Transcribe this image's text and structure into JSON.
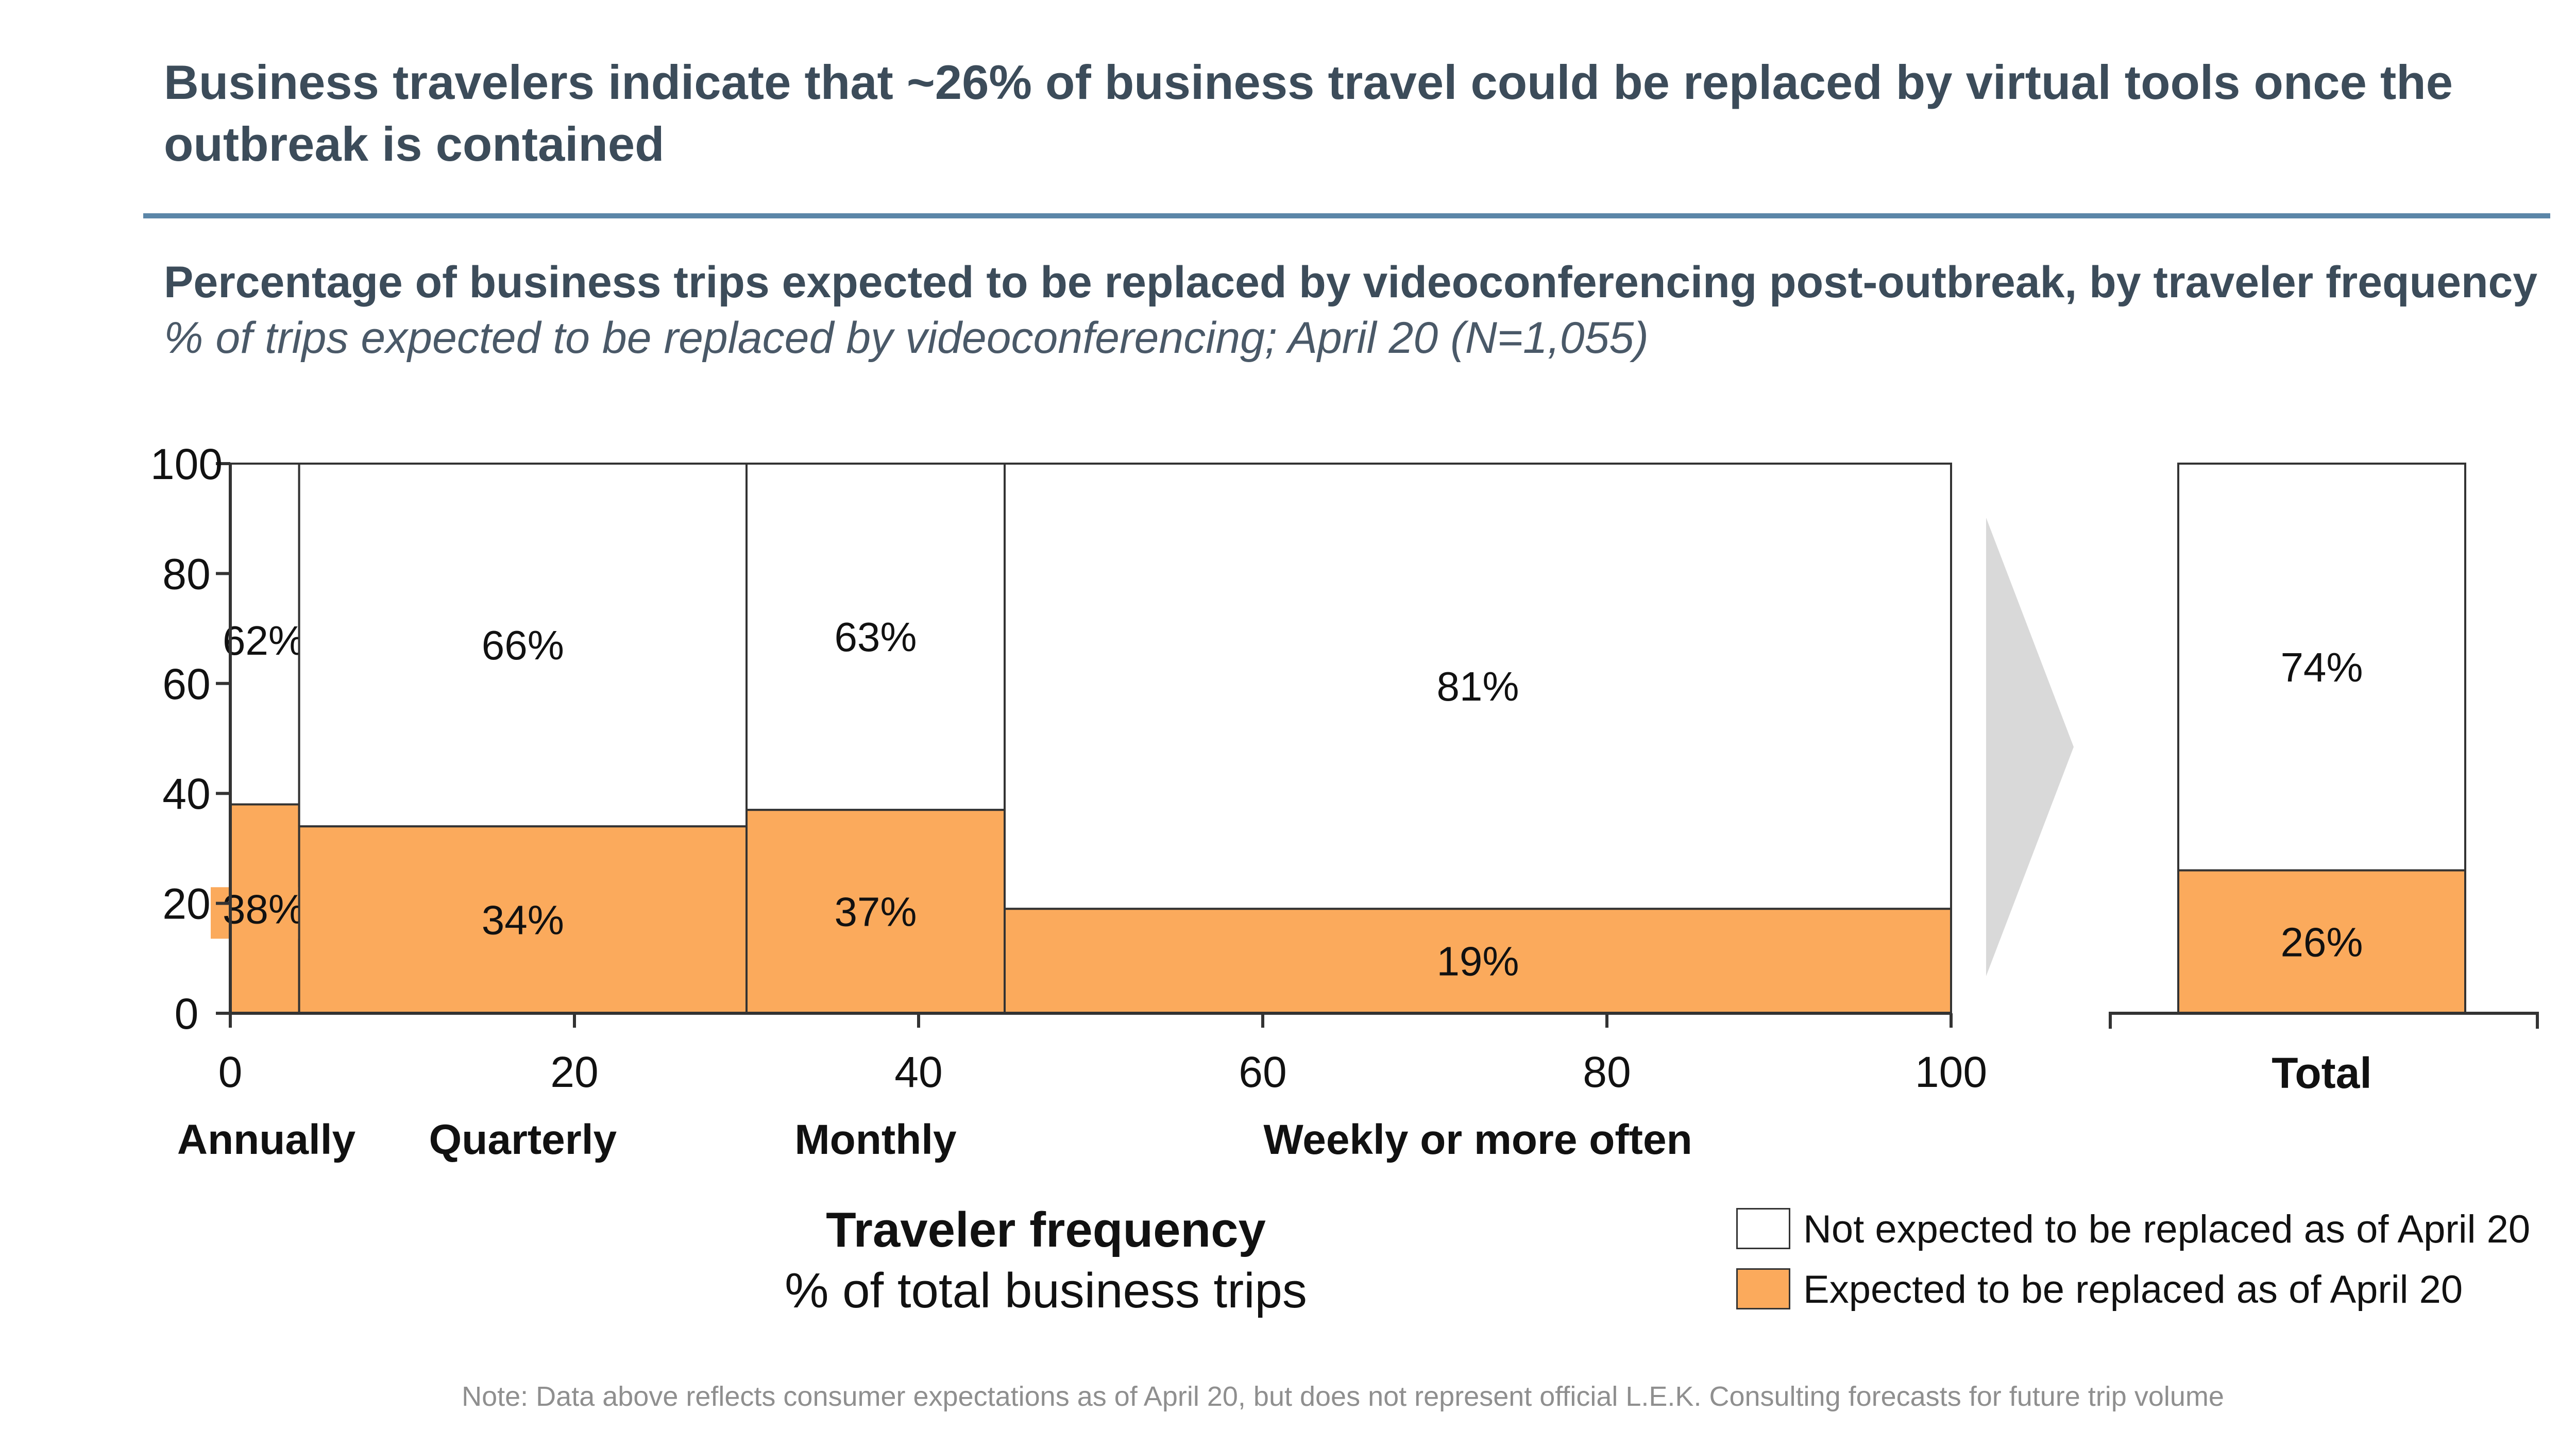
{
  "headline": "Business travelers indicate that ~26% of business travel could be replaced by virtual tools once the outbreak is contained",
  "chart_data": {
    "type": "bar",
    "subtype": "marimekko-stacked-100",
    "title": "Percentage of business trips expected to be replaced by videoconferencing post-outbreak, by traveler frequency",
    "subtitle": "% of trips expected to be replaced by videoconferencing; April 20 (N=1,055)",
    "xlabel": "Traveler frequency",
    "xlabel_sub": "% of total business trips",
    "xlim": [
      0,
      100
    ],
    "ylim": [
      0,
      100
    ],
    "x_ticks": [
      0,
      20,
      40,
      60,
      80,
      100
    ],
    "y_ticks": [
      0,
      20,
      40,
      60,
      80,
      100
    ],
    "grid": false,
    "legend_position": "bottom-right",
    "colors": {
      "expected": "#fbaa5c",
      "not_expected": "#ffffff",
      "outline": "#333333",
      "arrow": "#d9d9d9"
    },
    "series": [
      {
        "name": "Expected to be replaced as of April 20",
        "color": "#fbaa5c"
      },
      {
        "name": "Not expected to be replaced as of April 20",
        "color": "#ffffff"
      }
    ],
    "categories": [
      {
        "label": "Annually",
        "x_start": 0,
        "x_end": 4,
        "expected": 38,
        "not_expected": 62,
        "expected_label": "38%",
        "not_expected_label": "62%"
      },
      {
        "label": "Quarterly",
        "x_start": 4,
        "x_end": 30,
        "expected": 34,
        "not_expected": 66,
        "expected_label": "34%",
        "not_expected_label": "66%"
      },
      {
        "label": "Monthly",
        "x_start": 30,
        "x_end": 45,
        "expected": 37,
        "not_expected": 63,
        "expected_label": "37%",
        "not_expected_label": "63%"
      },
      {
        "label": "Weekly or more often",
        "x_start": 45,
        "x_end": 100,
        "expected": 19,
        "not_expected": 81,
        "expected_label": "19%",
        "not_expected_label": "81%"
      }
    ],
    "total": {
      "label": "Total",
      "expected": 26,
      "not_expected": 74,
      "expected_label": "26%",
      "not_expected_label": "74%"
    }
  },
  "legend": {
    "not_expected": "Not expected to be replaced as of April 20",
    "expected": "Expected to be replaced as of April 20"
  },
  "footnote": "Note: Data above reflects consumer expectations as of April 20, but does not represent official L.E.K. Consulting forecasts for future trip volume"
}
